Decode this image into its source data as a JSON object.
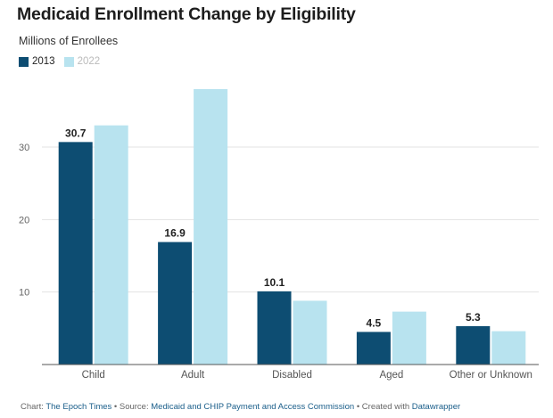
{
  "chart_data": {
    "type": "bar",
    "title": "Medicaid Enrollment Change by Eligibility",
    "subtitle": "Millions of Enrollees",
    "categories": [
      "Child",
      "Adult",
      "Disabled",
      "Aged",
      "Other or Unknown"
    ],
    "series": [
      {
        "name": "2013",
        "values": [
          30.7,
          16.9,
          10.1,
          4.5,
          5.3
        ],
        "color": "#0d4d72",
        "labels": [
          "30.7",
          "16.9",
          "10.1",
          "4.5",
          "5.3"
        ]
      },
      {
        "name": "2022",
        "values": [
          33.0,
          38.0,
          8.8,
          7.3,
          4.6
        ],
        "color": "#b8e3ef"
      }
    ],
    "yticks": [
      10,
      20,
      30
    ],
    "ylim": [
      0,
      38
    ],
    "grid": true,
    "legend": "top-left"
  },
  "footer": {
    "chart_prefix": "Chart: ",
    "chart_by": "The Epoch Times",
    "source_prefix": " • Source: ",
    "source": "Medicaid and CHIP Payment and Access Commission",
    "created_prefix": " • Created with ",
    "created_with": "Datawrapper"
  }
}
